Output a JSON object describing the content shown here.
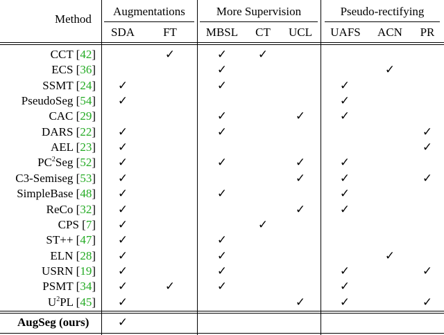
{
  "header": {
    "method_label": "Method",
    "groups": [
      {
        "label": "Augmentations",
        "cols": [
          "SDA",
          "FT"
        ]
      },
      {
        "label": "More Supervision",
        "cols": [
          "MBSL",
          "CT",
          "UCL"
        ]
      },
      {
        "label": "Pseudo-rectifying",
        "cols": [
          "UAFS",
          "ACN",
          "PR"
        ]
      }
    ]
  },
  "check_symbol": "✓",
  "rows": [
    {
      "name": "CCT",
      "sup": "",
      "name2": "",
      "ref": "42",
      "checks": [
        "FT",
        "MBSL",
        "CT"
      ]
    },
    {
      "name": "ECS",
      "sup": "",
      "name2": "",
      "ref": "36",
      "checks": [
        "MBSL",
        "ACN"
      ]
    },
    {
      "name": "SSMT",
      "sup": "",
      "name2": "",
      "ref": "24",
      "checks": [
        "SDA",
        "MBSL",
        "UAFS"
      ]
    },
    {
      "name": "PseudoSeg",
      "sup": "",
      "name2": "",
      "ref": "54",
      "checks": [
        "SDA",
        "UAFS"
      ]
    },
    {
      "name": "CAC",
      "sup": "",
      "name2": "",
      "ref": "29",
      "checks": [
        "MBSL",
        "UCL",
        "UAFS"
      ]
    },
    {
      "name": "DARS",
      "sup": "",
      "name2": "",
      "ref": "22",
      "checks": [
        "SDA",
        "MBSL",
        "PR"
      ]
    },
    {
      "name": "AEL",
      "sup": "",
      "name2": "",
      "ref": "23",
      "checks": [
        "SDA",
        "PR"
      ]
    },
    {
      "name": "PC",
      "sup": "2",
      "name2": "Seg",
      "ref": "52",
      "checks": [
        "SDA",
        "MBSL",
        "UCL",
        "UAFS"
      ]
    },
    {
      "name": "C3-Semiseg",
      "sup": "",
      "name2": "",
      "ref": "53",
      "checks": [
        "SDA",
        "UCL",
        "UAFS",
        "PR"
      ]
    },
    {
      "name": "SimpleBase",
      "sup": "",
      "name2": "",
      "ref": "48",
      "checks": [
        "SDA",
        "MBSL",
        "UAFS"
      ]
    },
    {
      "name": "ReCo",
      "sup": "",
      "name2": "",
      "ref": "32",
      "checks": [
        "SDA",
        "UCL",
        "UAFS"
      ]
    },
    {
      "name": "CPS",
      "sup": "",
      "name2": "",
      "ref": "7",
      "checks": [
        "SDA",
        "CT"
      ]
    },
    {
      "name": "ST++",
      "sup": "",
      "name2": "",
      "ref": "47",
      "checks": [
        "SDA",
        "MBSL"
      ]
    },
    {
      "name": "ELN",
      "sup": "",
      "name2": "",
      "ref": "28",
      "checks": [
        "SDA",
        "MBSL",
        "ACN"
      ]
    },
    {
      "name": "USRN",
      "sup": "",
      "name2": "",
      "ref": "19",
      "checks": [
        "SDA",
        "MBSL",
        "UAFS",
        "PR"
      ]
    },
    {
      "name": "PSMT",
      "sup": "",
      "name2": "",
      "ref": "34",
      "checks": [
        "SDA",
        "FT",
        "MBSL",
        "UAFS"
      ]
    },
    {
      "name": "U",
      "sup": "2",
      "name2": "PL",
      "ref": "45",
      "checks": [
        "SDA",
        "UCL",
        "UAFS",
        "PR"
      ]
    }
  ],
  "footer_row": {
    "name": "AugSeg (ours)",
    "checks": [
      "SDA"
    ]
  }
}
